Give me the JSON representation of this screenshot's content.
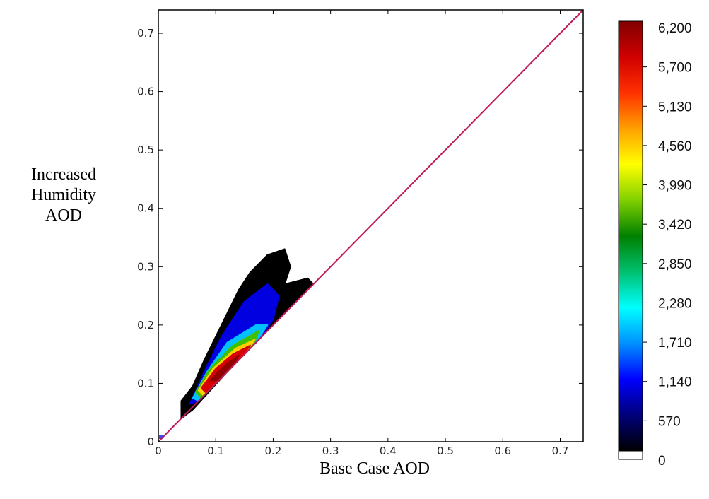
{
  "chart_data": {
    "type": "heatmap",
    "title": "",
    "xlabel": "Base Case AOD",
    "ylabel_lines": [
      "Increased",
      "Humidity",
      "AOD"
    ],
    "xlim": [
      0,
      0.74
    ],
    "ylim": [
      0,
      0.74
    ],
    "x_ticks": [
      "0",
      "0.1",
      "0.2",
      "0.3",
      "0.4",
      "0.5",
      "0.6",
      "0.7"
    ],
    "y_ticks": [
      "0",
      "0.1",
      "0.2",
      "0.3",
      "0.4",
      "0.5",
      "0.6",
      "0.7"
    ],
    "reference_line": {
      "description": "1:1 line",
      "color": "#c2185b",
      "points": [
        [
          0,
          0
        ],
        [
          0.74,
          0.74
        ]
      ]
    },
    "colorbar": {
      "min": 0,
      "max": 6200,
      "tick_labels": [
        "6,200",
        "5,700",
        "5,130",
        "4,560",
        "3,990",
        "3,420",
        "2,850",
        "2,280",
        "1,710",
        "1,140",
        "570",
        "0"
      ],
      "tick_values": [
        6200,
        5700,
        5130,
        4560,
        3990,
        3420,
        2850,
        2280,
        1710,
        1140,
        570,
        0
      ],
      "colormap": [
        "#ffffff",
        "#000000",
        "#00007a",
        "#0000ff",
        "#0090ff",
        "#00ffff",
        "#00c070",
        "#008000",
        "#80d000",
        "#ffff00",
        "#ffa000",
        "#ff3000",
        "#d00000",
        "#800000"
      ]
    },
    "density_regions": [
      {
        "level": "low",
        "color": "#000000",
        "polygon": [
          [
            0.04,
            0.04
          ],
          [
            0.04,
            0.07
          ],
          [
            0.06,
            0.095
          ],
          [
            0.08,
            0.14
          ],
          [
            0.11,
            0.2
          ],
          [
            0.14,
            0.26
          ],
          [
            0.16,
            0.29
          ],
          [
            0.19,
            0.32
          ],
          [
            0.22,
            0.33
          ],
          [
            0.23,
            0.3
          ],
          [
            0.22,
            0.27
          ],
          [
            0.26,
            0.28
          ],
          [
            0.27,
            0.27
          ],
          [
            0.19,
            0.19
          ],
          [
            0.12,
            0.12
          ],
          [
            0.06,
            0.055
          ]
        ]
      },
      {
        "level": "mid",
        "color": "#0000e0",
        "polygon": [
          [
            0.055,
            0.065
          ],
          [
            0.08,
            0.12
          ],
          [
            0.11,
            0.18
          ],
          [
            0.15,
            0.24
          ],
          [
            0.19,
            0.27
          ],
          [
            0.21,
            0.25
          ],
          [
            0.2,
            0.21
          ],
          [
            0.18,
            0.18
          ],
          [
            0.12,
            0.12
          ],
          [
            0.07,
            0.07
          ]
        ]
      },
      {
        "level": "cyan",
        "color": "#00c0ff",
        "polygon": [
          [
            0.06,
            0.075
          ],
          [
            0.085,
            0.12
          ],
          [
            0.12,
            0.17
          ],
          [
            0.17,
            0.2
          ],
          [
            0.19,
            0.2
          ],
          [
            0.17,
            0.17
          ],
          [
            0.11,
            0.11
          ],
          [
            0.07,
            0.07
          ]
        ]
      },
      {
        "level": "green",
        "color": "#40c000",
        "polygon": [
          [
            0.065,
            0.085
          ],
          [
            0.09,
            0.125
          ],
          [
            0.13,
            0.165
          ],
          [
            0.175,
            0.19
          ],
          [
            0.165,
            0.165
          ],
          [
            0.11,
            0.11
          ],
          [
            0.075,
            0.075
          ]
        ]
      },
      {
        "level": "yellow",
        "color": "#ffd000",
        "polygon": [
          [
            0.07,
            0.088
          ],
          [
            0.095,
            0.125
          ],
          [
            0.135,
            0.16
          ],
          [
            0.168,
            0.175
          ],
          [
            0.15,
            0.15
          ],
          [
            0.105,
            0.105
          ],
          [
            0.078,
            0.08
          ]
        ]
      },
      {
        "level": "high",
        "color": "#d80000",
        "polygon": [
          [
            0.075,
            0.092
          ],
          [
            0.1,
            0.125
          ],
          [
            0.13,
            0.15
          ],
          [
            0.16,
            0.165
          ],
          [
            0.14,
            0.14
          ],
          [
            0.105,
            0.105
          ],
          [
            0.082,
            0.085
          ]
        ]
      },
      {
        "level": "peak",
        "color": "#900000",
        "polygon": [
          [
            0.09,
            0.105
          ],
          [
            0.115,
            0.13
          ],
          [
            0.14,
            0.148
          ],
          [
            0.13,
            0.13
          ],
          [
            0.105,
            0.105
          ]
        ]
      }
    ]
  }
}
